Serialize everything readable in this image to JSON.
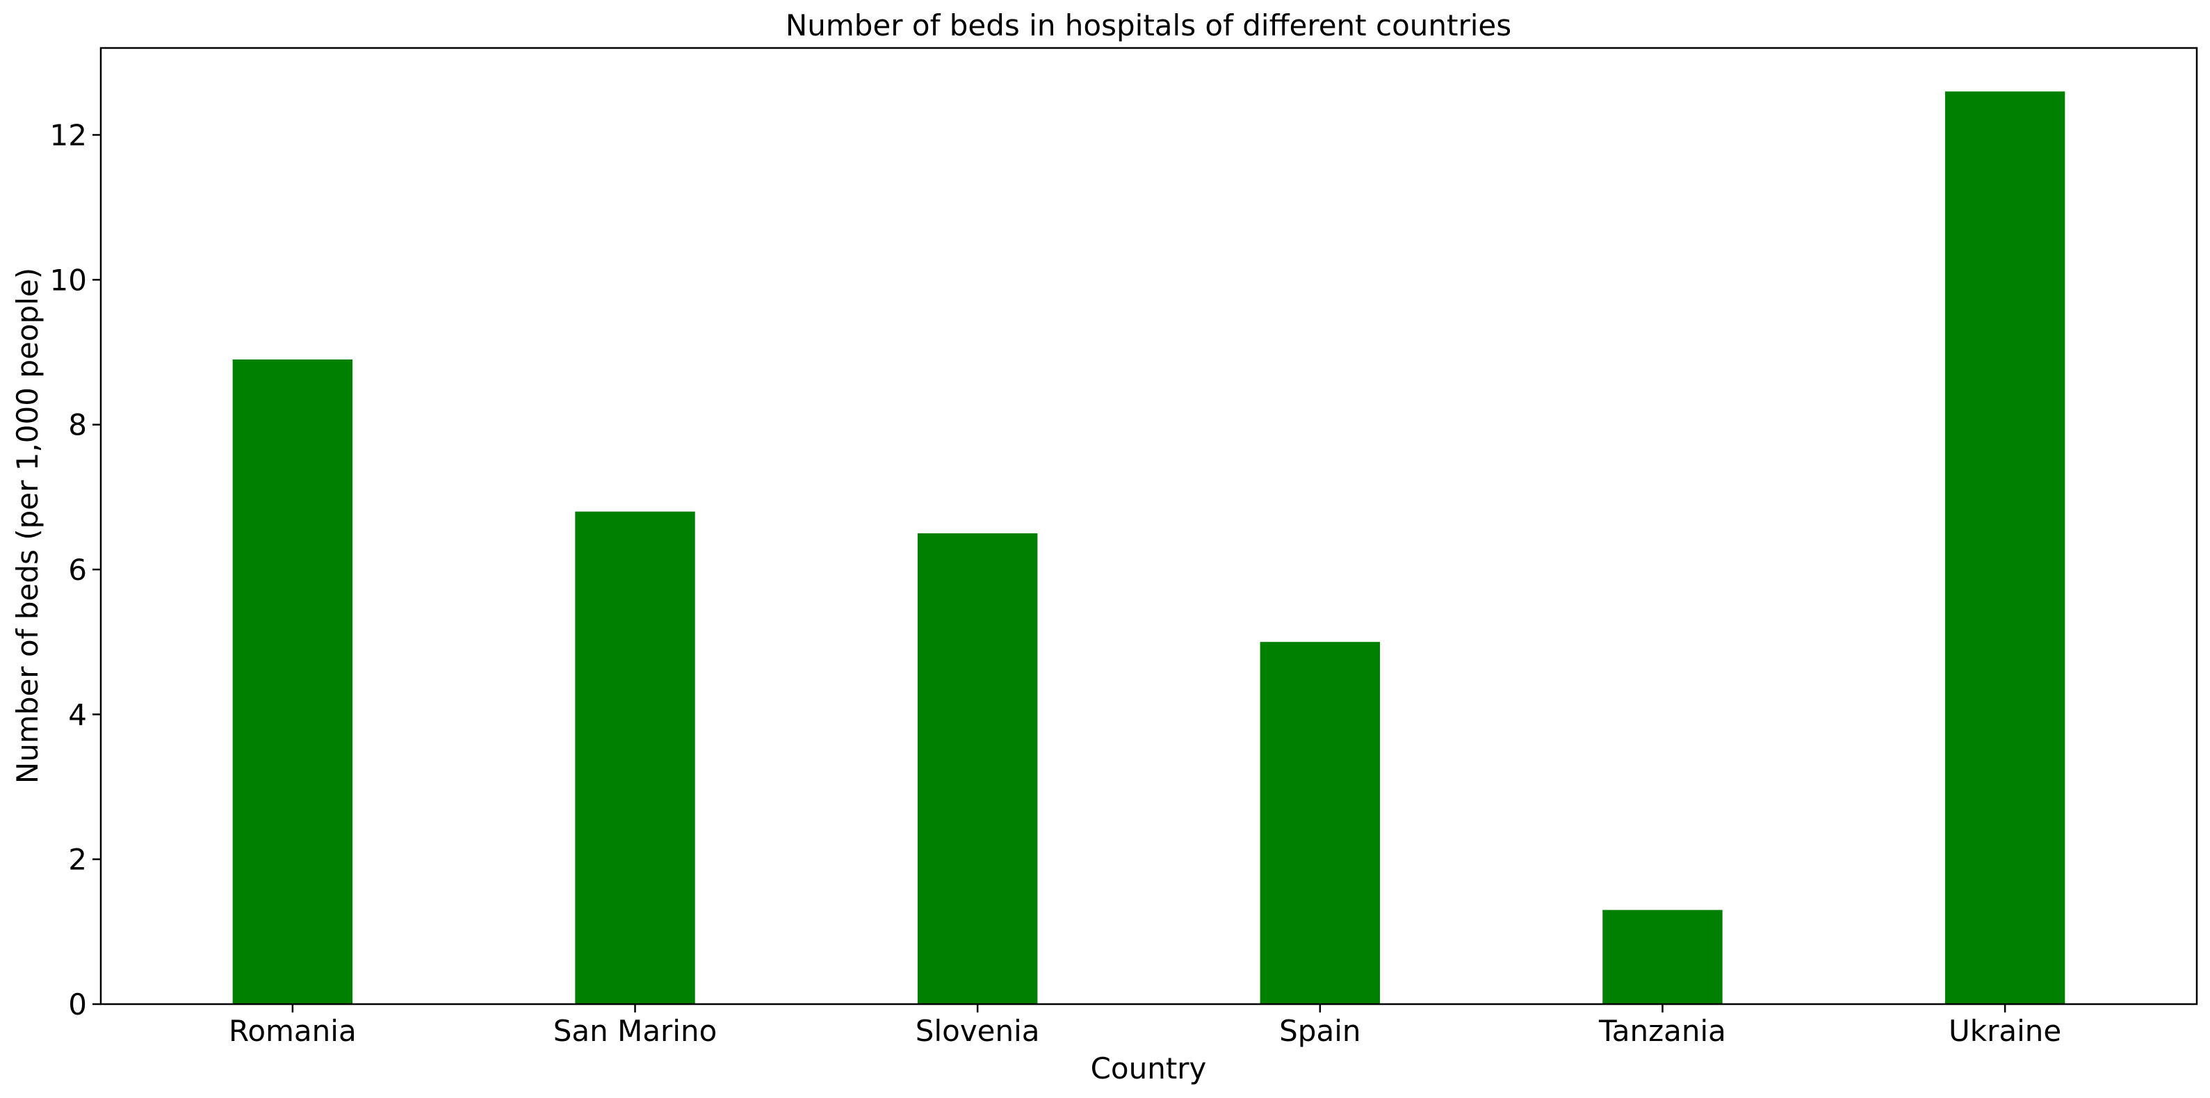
{
  "chart_data": {
    "type": "bar",
    "title": "Number of beds in hospitals of different countries",
    "xlabel": "Country",
    "ylabel": "Number of beds (per 1,000 people)",
    "categories": [
      "Romania",
      "San Marino",
      "Slovenia",
      "Spain",
      "Tanzania",
      "Ukraine"
    ],
    "values": [
      8.9,
      6.8,
      6.5,
      5.0,
      1.3,
      12.6
    ],
    "ylim": [
      0,
      13.2
    ],
    "yticks": [
      0,
      2,
      4,
      6,
      8,
      10,
      12
    ],
    "grid": false,
    "legend": "none",
    "bar_color": "#008000"
  }
}
